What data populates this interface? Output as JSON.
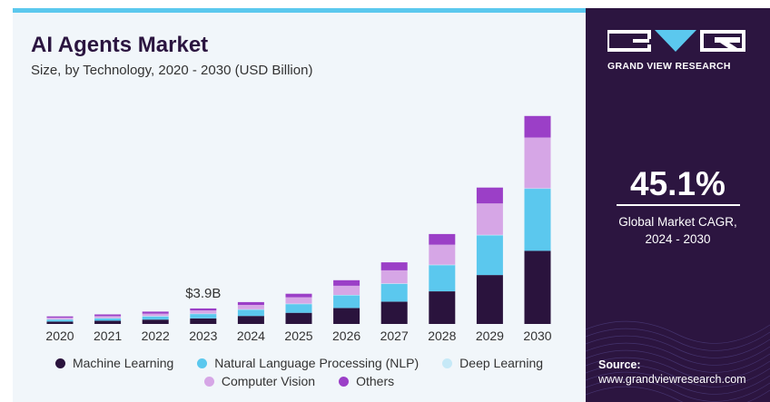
{
  "header": {
    "title": "AI Agents Market",
    "subtitle": "Size, by Technology, 2020 - 2030 (USD Billion)"
  },
  "sidebar": {
    "brand": "GRAND VIEW RESEARCH",
    "cagr_value": "45.1%",
    "cagr_label_line1": "Global Market CAGR,",
    "cagr_label_line2": "2024 - 2030",
    "source_label": "Source:",
    "source_url": "www.grandviewresearch.com"
  },
  "legend": {
    "items": [
      {
        "label": "Machine Learning",
        "color": "#2a133d"
      },
      {
        "label": "Natural Language Processing (NLP)",
        "color": "#5bc8ee"
      },
      {
        "label": "Deep Learning",
        "color": "#c6e9f7"
      },
      {
        "label": "Computer Vision",
        "color": "#d6a6e6"
      },
      {
        "label": "Others",
        "color": "#9b3fc7"
      }
    ]
  },
  "colors": {
    "accent": "#5bc8ee",
    "panel": "#2c1540",
    "background": "#f1f6fa"
  },
  "chart_data": {
    "type": "bar",
    "stacked": true,
    "title": "AI Agents Market",
    "subtitle": "Size, by Technology, 2020 - 2030 (USD Billion)",
    "categories": [
      "2020",
      "2021",
      "2022",
      "2023",
      "2024",
      "2025",
      "2026",
      "2027",
      "2028",
      "2029",
      "2030"
    ],
    "series": [
      {
        "name": "Machine Learning",
        "color": "#2a133d",
        "values": [
          0.6,
          0.8,
          1.1,
          1.4,
          2.0,
          2.8,
          4.0,
          5.6,
          8.2,
          12.3,
          18.4
        ]
      },
      {
        "name": "Natural Language Processing (NLP)",
        "color": "#5bc8ee",
        "values": [
          0.5,
          0.6,
          0.8,
          1.1,
          1.6,
          2.2,
          3.2,
          4.5,
          6.6,
          10.0,
          15.6
        ]
      },
      {
        "name": "Deep Learning",
        "color": "#c6e9f7",
        "values": [
          0.1,
          0.1,
          0.1,
          0.1,
          0.1,
          0.1,
          0.1,
          0.1,
          0.1,
          0.1,
          0.1
        ]
      },
      {
        "name": "Computer Vision",
        "color": "#d6a6e6",
        "values": [
          0.4,
          0.5,
          0.6,
          0.8,
          1.1,
          1.6,
          2.3,
          3.3,
          5.0,
          7.9,
          12.8
        ]
      },
      {
        "name": "Others",
        "color": "#9b3fc7",
        "values": [
          0.3,
          0.4,
          0.5,
          0.5,
          0.7,
          0.9,
          1.4,
          2.0,
          2.7,
          4.0,
          5.4
        ]
      }
    ],
    "annotations": [
      {
        "category": "2023",
        "text": "$3.9B"
      }
    ],
    "xlabel": "",
    "ylabel": "",
    "ylim": [
      0,
      60
    ],
    "grid": false,
    "legend_position": "bottom"
  }
}
